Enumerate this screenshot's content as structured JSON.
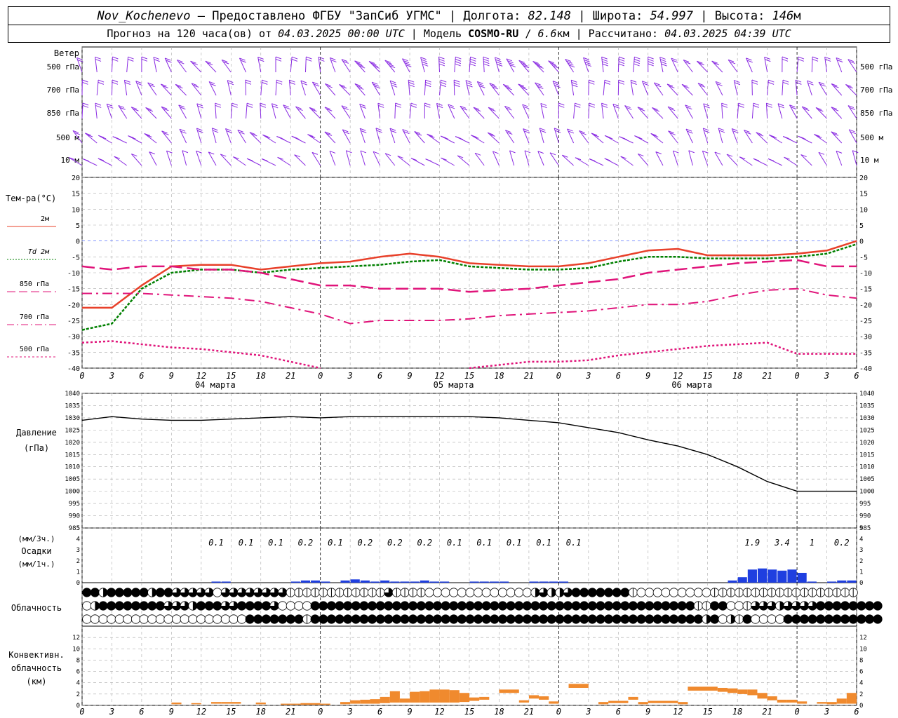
{
  "header": {
    "station": "Nov_Kochenevo",
    "provider": " – Предоставлено ФГБУ \"ЗапСиб УГМС\" | Долгота: ",
    "lon": "82.148",
    "lat_label": " | Широта: ",
    "lat": "54.997",
    "alt_label": " | Высота: ",
    "alt": "146",
    "alt_unit": "м",
    "forecast_label": "Прогноз на 120 часа(ов) от ",
    "start_time": "04.03.2025 00:00 UTC",
    "model_label": " | Модель ",
    "model": "COSMO-RU",
    "res_sep": " / ",
    "res": "6.6",
    "res_unit": "км",
    "calc_label": " | Рассчитано: ",
    "calc_time": "04.03.2025 04:39 UTC"
  },
  "hour_ticks": [
    "0",
    "3",
    "6",
    "9",
    "12",
    "15",
    "18",
    "21",
    "0",
    "3",
    "6",
    "9",
    "12",
    "15",
    "18",
    "21",
    "0",
    "3",
    "6",
    "9",
    "12",
    "15",
    "18",
    "21",
    "0",
    "3",
    "6"
  ],
  "day_labels": [
    "04 марта",
    "05 марта",
    "06 марта"
  ],
  "wind": {
    "title": "Ветер",
    "levels": [
      "500 гПа",
      "700 гПа",
      "850 гПа",
      "500 м",
      "10 м"
    ],
    "color": "#8a2be2"
  },
  "chart_data": [
    {
      "type": "line",
      "panel": "temperature",
      "title": "Тем-ра(°C)",
      "ylim": [
        -40,
        20
      ],
      "yticks": [
        "20",
        "15",
        "10",
        "5",
        "0",
        "-5",
        "-10",
        "-15",
        "-20",
        "-25",
        "-30",
        "-35",
        "-40"
      ],
      "legend": [
        "2м",
        "Td 2м",
        "850 гПа",
        "700 гПа",
        "500 гПа"
      ],
      "x_hours": [
        0,
        3,
        6,
        9,
        12,
        15,
        18,
        21,
        24,
        27,
        30,
        33,
        36,
        39,
        42,
        45,
        48,
        51,
        54,
        57,
        60,
        63,
        66,
        69,
        72,
        75,
        78
      ],
      "series": [
        {
          "name": "2м",
          "color": "#e8402a",
          "values": [
            -21,
            -21,
            -14,
            -8,
            -7.5,
            -7.5,
            -9,
            -8,
            -7,
            -6.5,
            -5,
            -4,
            -5,
            -7,
            -7.5,
            -8,
            -8,
            -7,
            -5,
            -3,
            -2.5,
            -4.5,
            -4.5,
            -4.5,
            -4,
            -3,
            0
          ]
        },
        {
          "name": "Td 2м",
          "color": "#008000",
          "values": [
            -28,
            -26,
            -15,
            -10,
            -9,
            -9,
            -10,
            -9,
            -8.5,
            -8,
            -7.5,
            -6.5,
            -6,
            -8,
            -8.5,
            -9,
            -9,
            -8.5,
            -6.5,
            -5,
            -5,
            -5.5,
            -5.5,
            -5.5,
            -5,
            -4,
            -1
          ]
        },
        {
          "name": "850 гПа",
          "color": "#e0147a",
          "values": [
            -8,
            -9,
            -8,
            -8,
            -9,
            -9,
            -10,
            -12,
            -14,
            -14,
            -15,
            -15,
            -15,
            -16,
            -15.5,
            -15,
            -14,
            -13,
            -12,
            -10,
            -9,
            -8,
            -7,
            -6.5,
            -6,
            -8,
            -8
          ]
        },
        {
          "name": "700 гПа",
          "color": "#e0147a",
          "values": [
            -16.5,
            -16.5,
            -16.5,
            -17,
            -17.5,
            -18,
            -19,
            -21,
            -23,
            -26,
            -25,
            -25,
            -25,
            -24.5,
            -23.5,
            -23,
            -22.5,
            -22,
            -21,
            -20,
            -20,
            -19,
            -17,
            -15.5,
            -15,
            -17,
            -18
          ]
        },
        {
          "name": "500 гПа",
          "color": "#e0147a",
          "values": [
            -32,
            -31.5,
            -32.5,
            -33.5,
            -34,
            -35,
            -36,
            -38,
            -40,
            null,
            null,
            null,
            null,
            -40,
            -39,
            -38,
            -38,
            -37.5,
            -36,
            -35,
            -34,
            -33,
            -32.5,
            -32,
            -35.5,
            -35.5,
            -35.5
          ]
        }
      ]
    },
    {
      "type": "line",
      "panel": "pressure",
      "title": "Давление",
      "ylabel": "(гПа)",
      "ylim": [
        985,
        1040
      ],
      "yticks": [
        "1040",
        "1035",
        "1030",
        "1025",
        "1020",
        "1015",
        "1010",
        "1005",
        "1000",
        "995",
        "990",
        "985"
      ],
      "x_hours": [
        0,
        3,
        6,
        9,
        12,
        15,
        18,
        21,
        24,
        27,
        30,
        33,
        36,
        39,
        42,
        45,
        48,
        51,
        54,
        57,
        60,
        63,
        66,
        69,
        72,
        75,
        78
      ],
      "series": [
        {
          "name": "",
          "color": "#000000",
          "values": [
            1029,
            1030.5,
            1029.5,
            1029,
            1029,
            1029.5,
            1030,
            1030.5,
            1030,
            1030.5,
            1030.5,
            1030.5,
            1030.5,
            1030.5,
            1030,
            1029,
            1028,
            1026,
            1024,
            1021,
            1018.5,
            1015,
            1010,
            1004,
            1000,
            1000,
            1000
          ]
        }
      ]
    },
    {
      "type": "bar",
      "panel": "precipitation",
      "title": "Осадки",
      "ylabel_top": "(мм/3ч.)",
      "ylabel_bottom": "(мм/1ч.)",
      "ylim": [
        0,
        5
      ],
      "yticks": [
        "5",
        "4",
        "3",
        "2",
        "1",
        "0"
      ],
      "labels_3h": [
        {
          "h": 13.5,
          "v": "0.1"
        },
        {
          "h": 16.5,
          "v": "0.1"
        },
        {
          "h": 19.5,
          "v": "0.1"
        },
        {
          "h": 22.5,
          "v": "0.2"
        },
        {
          "h": 25.5,
          "v": "0.1"
        },
        {
          "h": 28.5,
          "v": "0.2"
        },
        {
          "h": 31.5,
          "v": "0.2"
        },
        {
          "h": 34.5,
          "v": "0.2"
        },
        {
          "h": 37.5,
          "v": "0.1"
        },
        {
          "h": 40.5,
          "v": "0.1"
        },
        {
          "h": 43.5,
          "v": "0.1"
        },
        {
          "h": 46.5,
          "v": "0.1"
        },
        {
          "h": 49.5,
          "v": "0.1"
        },
        {
          "h": 67.5,
          "v": "1.9"
        },
        {
          "h": 70.5,
          "v": "3.4"
        },
        {
          "h": 73.5,
          "v": "1"
        },
        {
          "h": 76.5,
          "v": "0.2"
        }
      ],
      "bars_1h": [
        {
          "h": 14,
          "v": 0.1
        },
        {
          "h": 15,
          "v": 0.1
        },
        {
          "h": 22,
          "v": 0.1
        },
        {
          "h": 23,
          "v": 0.2
        },
        {
          "h": 24,
          "v": 0.2
        },
        {
          "h": 25,
          "v": 0.1
        },
        {
          "h": 27,
          "v": 0.2
        },
        {
          "h": 28,
          "v": 0.3
        },
        {
          "h": 29,
          "v": 0.2
        },
        {
          "h": 30,
          "v": 0.1
        },
        {
          "h": 31,
          "v": 0.2
        },
        {
          "h": 32,
          "v": 0.1
        },
        {
          "h": 33,
          "v": 0.1
        },
        {
          "h": 34,
          "v": 0.1
        },
        {
          "h": 35,
          "v": 0.2
        },
        {
          "h": 36,
          "v": 0.1
        },
        {
          "h": 37,
          "v": 0.1
        },
        {
          "h": 40,
          "v": 0.1
        },
        {
          "h": 41,
          "v": 0.1
        },
        {
          "h": 42,
          "v": 0.1
        },
        {
          "h": 43,
          "v": 0.1
        },
        {
          "h": 46,
          "v": 0.1
        },
        {
          "h": 47,
          "v": 0.1
        },
        {
          "h": 48,
          "v": 0.1
        },
        {
          "h": 49,
          "v": 0.1
        },
        {
          "h": 66,
          "v": 0.2
        },
        {
          "h": 67,
          "v": 0.5
        },
        {
          "h": 68,
          "v": 1.2
        },
        {
          "h": 69,
          "v": 1.3
        },
        {
          "h": 70,
          "v": 1.2
        },
        {
          "h": 71,
          "v": 1.1
        },
        {
          "h": 72,
          "v": 1.2
        },
        {
          "h": 73,
          "v": 0.9
        },
        {
          "h": 74,
          "v": 0.1
        },
        {
          "h": 76,
          "v": 0.1
        },
        {
          "h": 77,
          "v": 0.2
        },
        {
          "h": 78,
          "v": 0.2
        }
      ],
      "color": "#1f3fe0"
    },
    {
      "type": "table",
      "panel": "cloudiness",
      "title": "Облачность",
      "rows": [
        "44244444244333330333333331111111111113111100000000000002322344444441000000000111111111111111111",
        "02444444443332444334444300004444444444444444444444444444444444444444444444411440013332333344444444",
        "00000000000000000000444444414444444444444444444444444444444444444444444444442402140000444444444444"
      ]
    },
    {
      "type": "bar",
      "panel": "convective",
      "title": "Конвективн.",
      "ylabel": "облачность",
      "yunit": "(км)",
      "ylim": [
        0,
        14
      ],
      "yticks": [
        "12",
        "10",
        "8",
        "6",
        "4",
        "2",
        "0"
      ],
      "bars": [
        {
          "h0": 9,
          "h1": 10,
          "base": 0.2,
          "top": 0.5
        },
        {
          "h0": 11,
          "h1": 12,
          "base": 0.2,
          "top": 0.4
        },
        {
          "h0": 13,
          "h1": 14,
          "base": 0.3,
          "top": 0.6
        },
        {
          "h0": 14,
          "h1": 16,
          "base": 0.3,
          "top": 0.6
        },
        {
          "h0": 17.5,
          "h1": 18.5,
          "base": 0.2,
          "top": 0.5
        },
        {
          "h0": 20,
          "h1": 22,
          "base": 0.1,
          "top": 0.3
        },
        {
          "h0": 22,
          "h1": 24,
          "base": 0.1,
          "top": 0.4
        },
        {
          "h0": 24,
          "h1": 25,
          "base": 0.1,
          "top": 0.3
        },
        {
          "h0": 26,
          "h1": 27,
          "base": 0.2,
          "top": 0.6
        },
        {
          "h0": 27,
          "h1": 28,
          "base": 0.3,
          "top": 0.9
        },
        {
          "h0": 28,
          "h1": 29,
          "base": 0.3,
          "top": 1
        },
        {
          "h0": 29,
          "h1": 30,
          "base": 0.3,
          "top": 1.1
        },
        {
          "h0": 30,
          "h1": 31,
          "base": 0.4,
          "top": 1.5
        },
        {
          "h0": 31,
          "h1": 32,
          "base": 0.5,
          "top": 2.5
        },
        {
          "h0": 32,
          "h1": 33,
          "base": 0.5,
          "top": 1.2
        },
        {
          "h0": 33,
          "h1": 34,
          "base": 0.5,
          "top": 2.4
        },
        {
          "h0": 34,
          "h1": 35,
          "base": 0.5,
          "top": 2.5
        },
        {
          "h0": 35,
          "h1": 36,
          "base": 0.5,
          "top": 2.8
        },
        {
          "h0": 36,
          "h1": 37,
          "base": 0.5,
          "top": 2.8
        },
        {
          "h0": 37,
          "h1": 38,
          "base": 0.5,
          "top": 2.7
        },
        {
          "h0": 38,
          "h1": 39,
          "base": 0.6,
          "top": 2.2
        },
        {
          "h0": 39,
          "h1": 40,
          "base": 0.8,
          "top": 1.4
        },
        {
          "h0": 40,
          "h1": 41,
          "base": 1,
          "top": 1.5
        },
        {
          "h0": 42,
          "h1": 44,
          "base": 2.2,
          "top": 2.8
        },
        {
          "h0": 44,
          "h1": 45,
          "base": 0.5,
          "top": 0.9
        },
        {
          "h0": 45,
          "h1": 46,
          "base": 1.2,
          "top": 1.8
        },
        {
          "h0": 46,
          "h1": 47,
          "base": 1,
          "top": 1.6
        },
        {
          "h0": 47,
          "h1": 48,
          "base": 0.3,
          "top": 0.7
        },
        {
          "h0": 49,
          "h1": 51,
          "base": 3.1,
          "top": 3.8
        },
        {
          "h0": 52,
          "h1": 53,
          "base": 0.2,
          "top": 0.6
        },
        {
          "h0": 53,
          "h1": 55,
          "base": 0.4,
          "top": 0.8
        },
        {
          "h0": 55,
          "h1": 56,
          "base": 1,
          "top": 1.5
        },
        {
          "h0": 56,
          "h1": 57,
          "base": 0.2,
          "top": 0.6
        },
        {
          "h0": 57,
          "h1": 60,
          "base": 0.4,
          "top": 0.8
        },
        {
          "h0": 60,
          "h1": 61,
          "base": 0.2,
          "top": 0.6
        },
        {
          "h0": 61,
          "h1": 64,
          "base": 2.6,
          "top": 3.3
        },
        {
          "h0": 64,
          "h1": 65,
          "base": 2.4,
          "top": 3.1
        },
        {
          "h0": 65,
          "h1": 66,
          "base": 2.2,
          "top": 3
        },
        {
          "h0": 66,
          "h1": 67,
          "base": 2,
          "top": 2.8
        },
        {
          "h0": 67,
          "h1": 68,
          "base": 1.8,
          "top": 2.8
        },
        {
          "h0": 68,
          "h1": 69,
          "base": 1.2,
          "top": 2.2
        },
        {
          "h0": 69,
          "h1": 70,
          "base": 0.9,
          "top": 1.6
        },
        {
          "h0": 70,
          "h1": 71,
          "base": 0.5,
          "top": 1
        },
        {
          "h0": 71,
          "h1": 72,
          "base": 0.5,
          "top": 1
        },
        {
          "h0": 72,
          "h1": 73,
          "base": 0.3,
          "top": 0.7
        },
        {
          "h0": 74,
          "h1": 75,
          "base": 0.3,
          "top": 0.6
        },
        {
          "h0": 75,
          "h1": 76,
          "base": 0.2,
          "top": 0.6
        },
        {
          "h0": 76,
          "h1": 77,
          "base": 0.3,
          "top": 1.2
        },
        {
          "h0": 77,
          "h1": 78,
          "base": 0.3,
          "top": 2.2
        }
      ],
      "color": "#f08a2e",
      "base_color": "#f4b97a"
    }
  ]
}
